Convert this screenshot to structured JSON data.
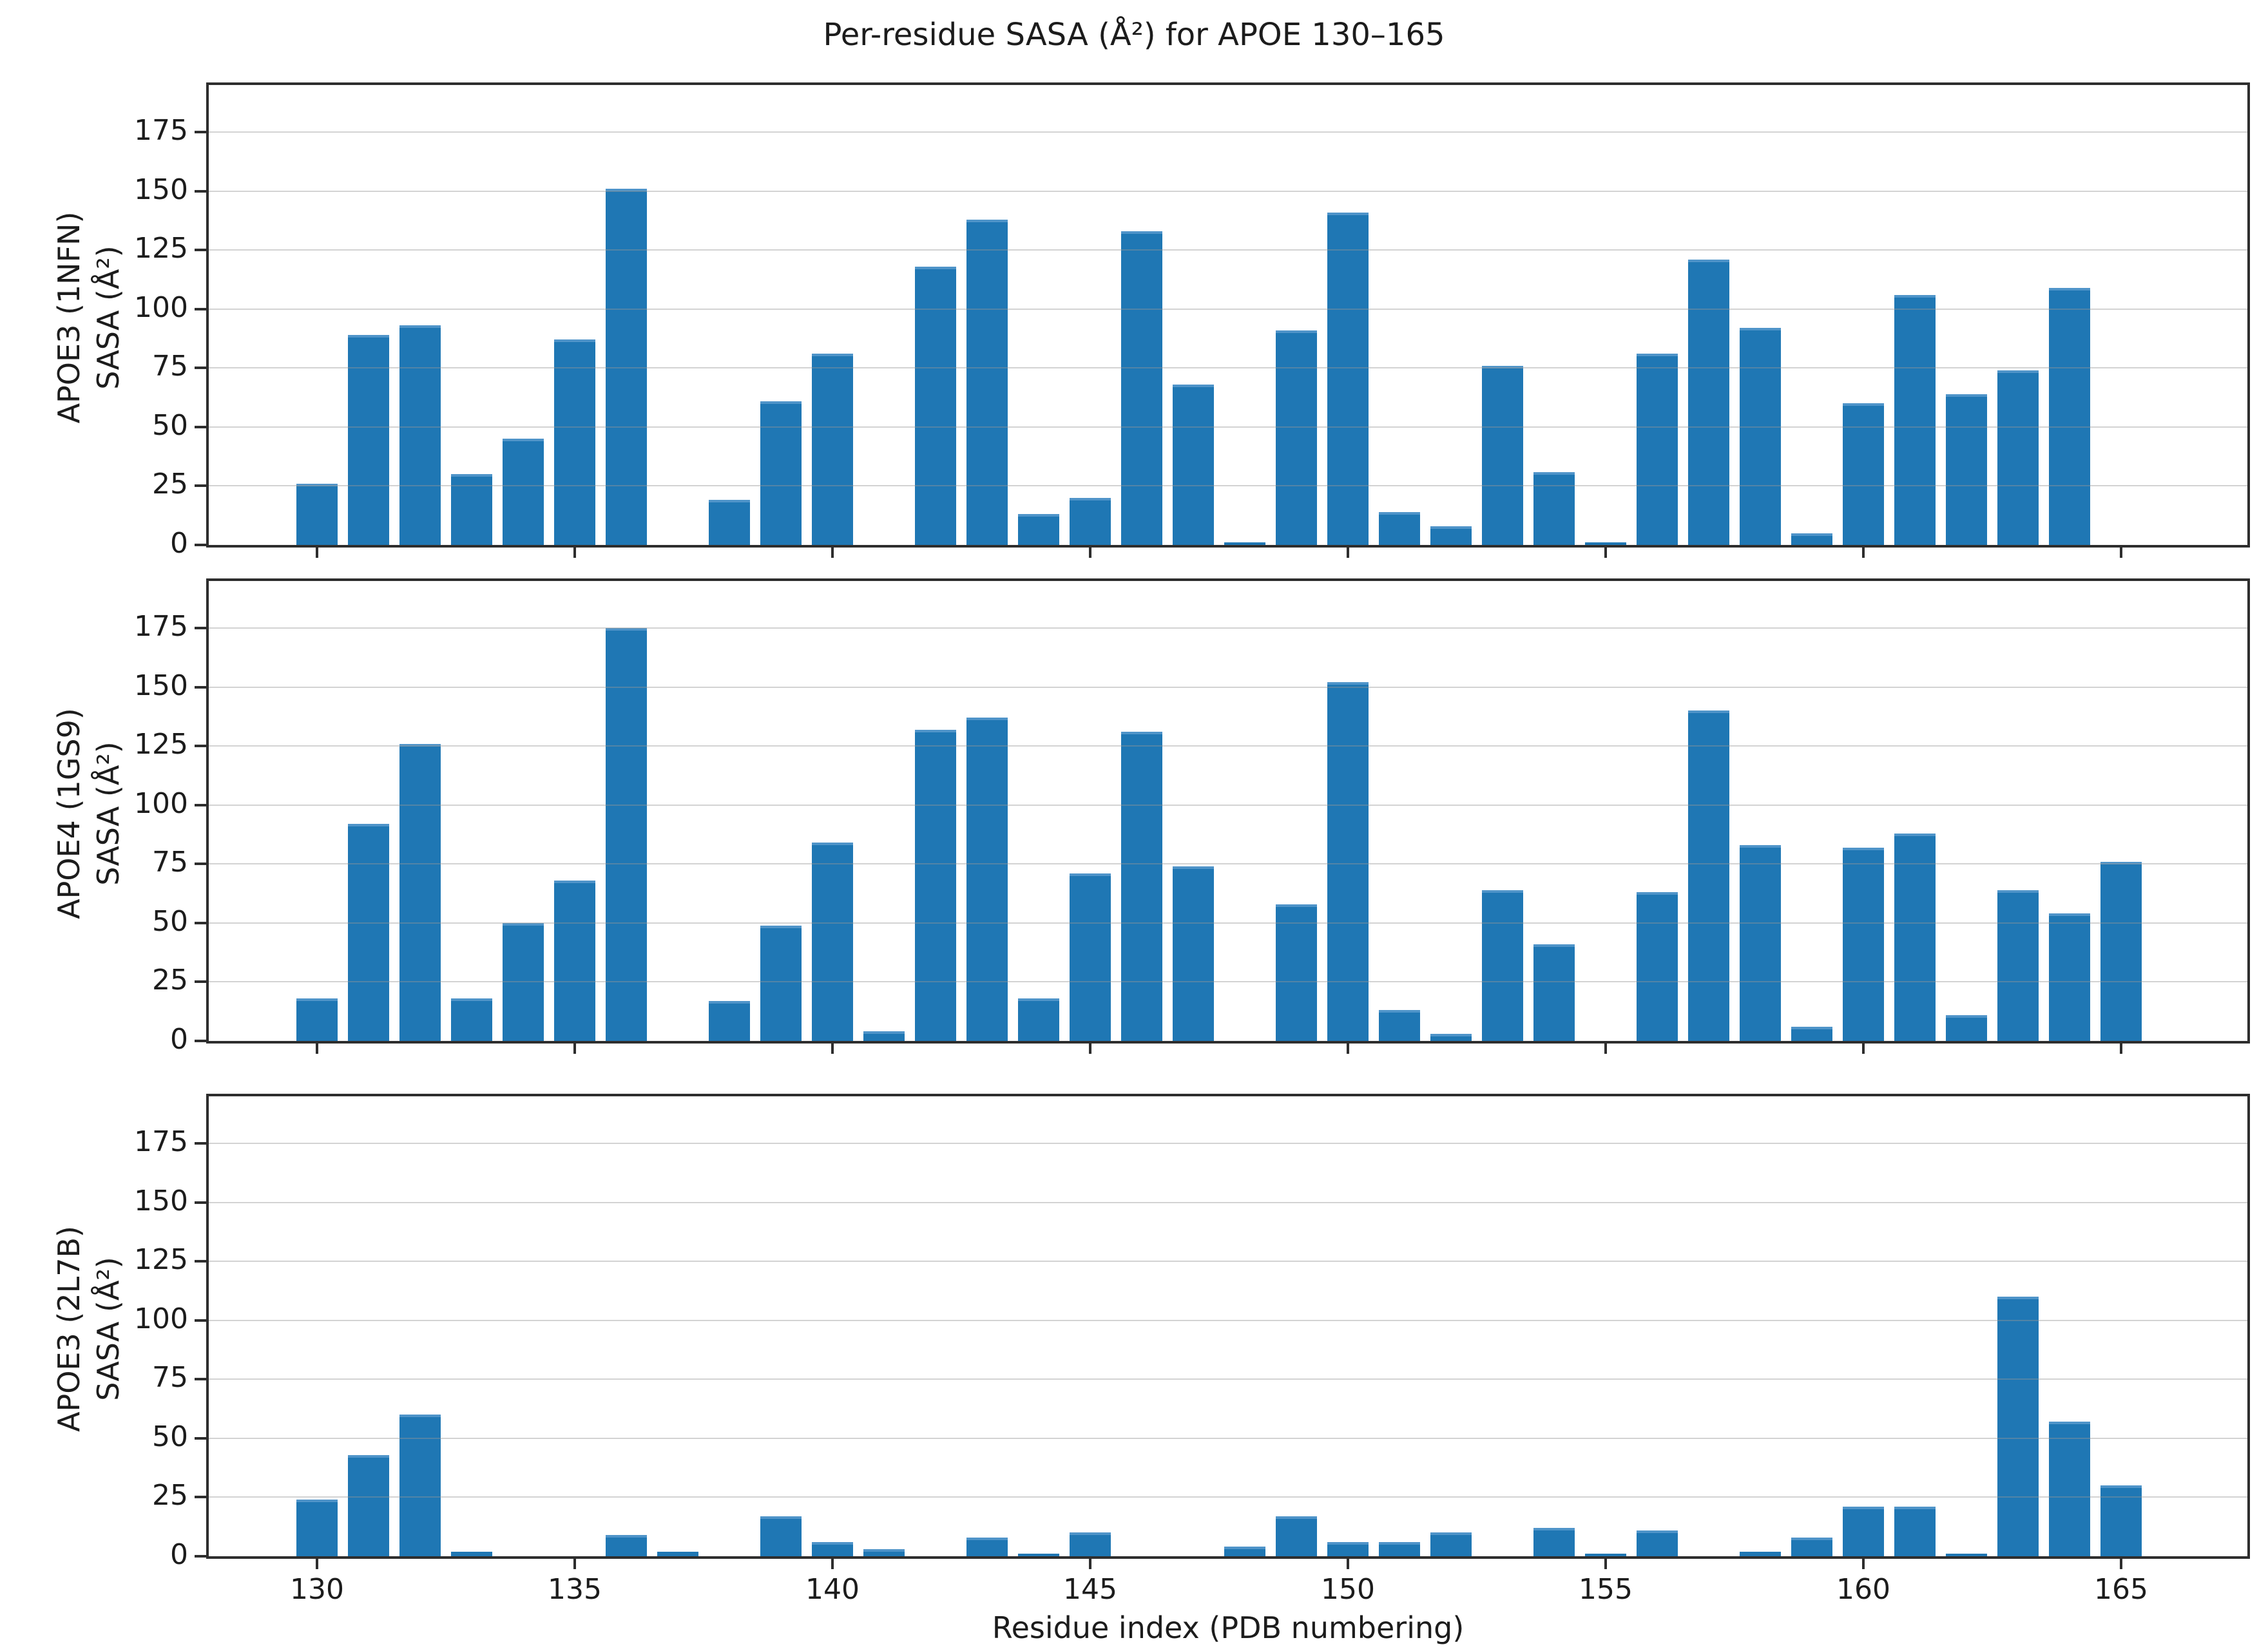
{
  "title": "Per-residue SASA (Å²) for APOE 130–165",
  "chart_data": {
    "type": "bar",
    "title": "Per-residue SASA (Å²) for APOE 130–165",
    "xlabel": "Residue index (PDB numbering)",
    "ylabel_shared": "SASA (Å²)",
    "bar_color": "#1f77b4",
    "grid": true,
    "x": [
      130,
      131,
      132,
      133,
      134,
      135,
      136,
      137,
      138,
      139,
      140,
      141,
      142,
      143,
      144,
      145,
      146,
      147,
      148,
      149,
      150,
      151,
      152,
      153,
      154,
      155,
      156,
      157,
      158,
      159,
      160,
      161,
      162,
      163,
      164,
      165
    ],
    "xticks": [
      130,
      135,
      140,
      145,
      150,
      155,
      160,
      165
    ],
    "yticks": [
      0,
      25,
      50,
      75,
      100,
      125,
      150,
      175
    ],
    "ylim": [
      0,
      195
    ],
    "panels": [
      {
        "id": "apoe3-1nfn",
        "ylabel_line1": "APOE3 (1NFN)",
        "ylabel_line2": "SASA (Å²)",
        "values": [
          26,
          89,
          93,
          30,
          45,
          87,
          151,
          0,
          19,
          61,
          81,
          0,
          118,
          138,
          13,
          20,
          133,
          68,
          1,
          91,
          141,
          14,
          8,
          76,
          31,
          1,
          81,
          121,
          92,
          5,
          60,
          106,
          64,
          74,
          109,
          0
        ]
      },
      {
        "id": "apoe4-1gs9",
        "ylabel_line1": "APOE4 (1GS9)",
        "ylabel_line2": "SASA (Å²)",
        "values": [
          18,
          92,
          126,
          18,
          50,
          68,
          175,
          0,
          17,
          49,
          84,
          4,
          132,
          137,
          18,
          71,
          131,
          74,
          0,
          58,
          152,
          13,
          3,
          64,
          41,
          0,
          63,
          140,
          83,
          6,
          82,
          88,
          11,
          64,
          54,
          76
        ]
      },
      {
        "id": "apoe3-2l7b",
        "ylabel_line1": "APOE3 (2L7B)",
        "ylabel_line2": "SASA (Å²)",
        "values": [
          24,
          43,
          60,
          2,
          0,
          0,
          9,
          2,
          0,
          17,
          6,
          3,
          0,
          8,
          1,
          10,
          0,
          0,
          4,
          17,
          6,
          6,
          10,
          0,
          12,
          1,
          11,
          0,
          2,
          8,
          21,
          21,
          1,
          110,
          57,
          30
        ]
      }
    ]
  }
}
